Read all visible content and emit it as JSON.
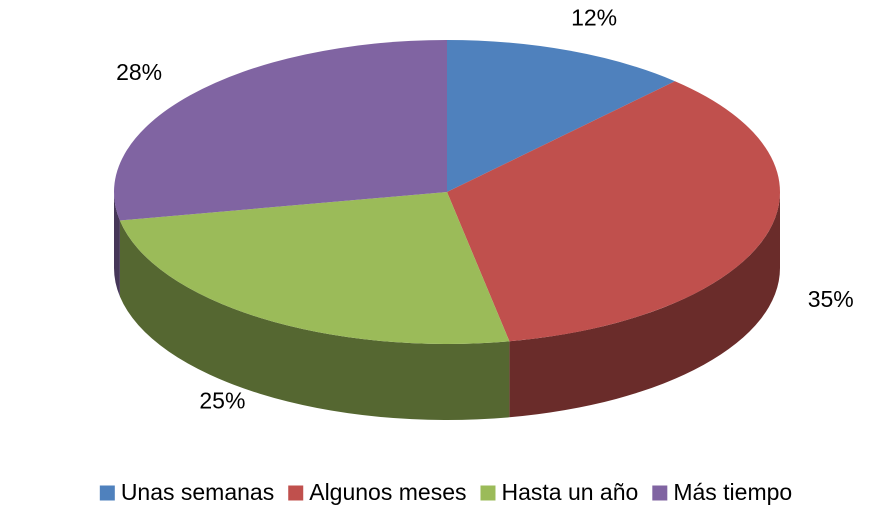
{
  "chart_data": {
    "type": "pie3d",
    "categories": [
      "Unas semanas",
      "Algunos meses",
      "Hasta un año",
      "Más tiempo"
    ],
    "values": [
      12,
      35,
      25,
      28
    ],
    "value_labels": [
      "12%",
      "35%",
      "25%",
      "28%"
    ],
    "colors": [
      "#4f81bd",
      "#c0504d",
      "#9bbb59",
      "#8064a2"
    ],
    "legend": "bottom"
  }
}
